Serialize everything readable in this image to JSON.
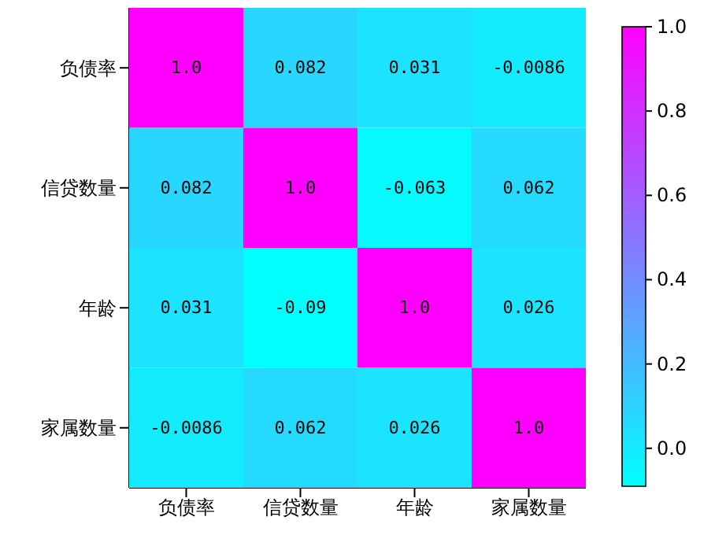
{
  "chart_data": {
    "type": "heatmap",
    "categories": [
      "负债率",
      "信贷数量",
      "年龄",
      "家属数量"
    ],
    "y_categories": [
      "负债率",
      "信贷数量",
      "年龄",
      "家属数量"
    ],
    "cells": [
      [
        1.0,
        0.082,
        0.031,
        -0.0086
      ],
      [
        0.082,
        1.0,
        -0.063,
        0.062
      ],
      [
        0.031,
        -0.09,
        1.0,
        0.026
      ],
      [
        -0.0086,
        0.062,
        0.026,
        1.0
      ]
    ],
    "cell_labels": [
      [
        "1.0",
        "0.082",
        "0.031",
        "-0.0086"
      ],
      [
        "0.082",
        "1.0",
        "-0.063",
        "0.062"
      ],
      [
        "0.031",
        "-0.09",
        "1.0",
        "0.026"
      ],
      [
        "-0.0086",
        "0.062",
        "0.026",
        "1.0"
      ]
    ],
    "clim": [
      -0.09,
      1.0
    ],
    "cticks": [
      {
        "value": 0,
        "label": "0.0"
      },
      0.2,
      0.4,
      0.6,
      0.8,
      {
        "value": 1,
        "label": "1.0"
      }
    ]
  }
}
